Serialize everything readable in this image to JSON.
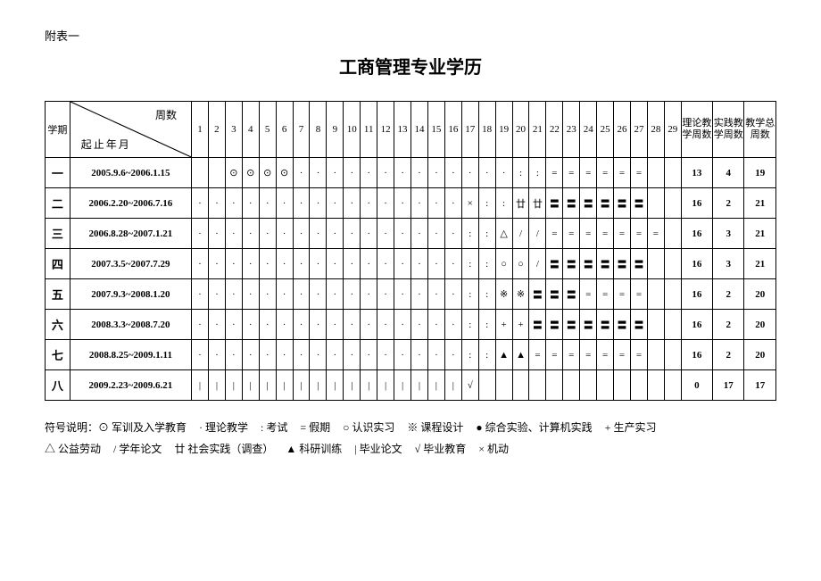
{
  "annex_label": "附表一",
  "title": "工商管理专业学历",
  "header": {
    "semester_label": "学期",
    "diag_top": "周数",
    "diag_bottom": "起止年月",
    "sum1": "理论教学周数",
    "sum2": "实践教学周数",
    "sum3": "教学总周数"
  },
  "week_numbers": [
    "1",
    "2",
    "3",
    "4",
    "5",
    "6",
    "7",
    "8",
    "9",
    "10",
    "11",
    "12",
    "13",
    "14",
    "15",
    "16",
    "17",
    "18",
    "19",
    "20",
    "21",
    "22",
    "23",
    "24",
    "25",
    "26",
    "27",
    "28",
    "29"
  ],
  "rows": [
    {
      "sem": "一",
      "dates": "2005.9.6~2006.1.15",
      "cells": [
        "",
        "",
        "⊙",
        "⊙",
        "⊙",
        "⊙",
        "·",
        "·",
        "·",
        "·",
        "·",
        "·",
        "·",
        "·",
        "·",
        "·",
        "·",
        "·",
        "·",
        ":",
        ":",
        "=",
        "=",
        "=",
        "=",
        "=",
        "=",
        "",
        ""
      ],
      "sum1": "13",
      "sum2": "4",
      "sum3": "19"
    },
    {
      "sem": "二",
      "dates": "2006.2.20~2006.7.16",
      "cells": [
        "·",
        "·",
        "·",
        "·",
        "·",
        "·",
        "·",
        "·",
        "·",
        "·",
        "·",
        "·",
        "·",
        "·",
        "·",
        "·",
        "×",
        ":",
        ":",
        "廿",
        "廿",
        "〓",
        "〓",
        "〓",
        "〓",
        "〓",
        "〓",
        "",
        ""
      ],
      "sum1": "16",
      "sum2": "2",
      "sum3": "21"
    },
    {
      "sem": "三",
      "dates": "2006.8.28~2007.1.21",
      "cells": [
        "·",
        "·",
        "·",
        "·",
        "·",
        "·",
        "·",
        "·",
        "·",
        "·",
        "·",
        "·",
        "·",
        "·",
        "·",
        "·",
        ":",
        ":",
        "△",
        "/",
        "/",
        "=",
        "=",
        "=",
        "=",
        "=",
        "=",
        "=",
        ""
      ],
      "sum1": "16",
      "sum2": "3",
      "sum3": "21"
    },
    {
      "sem": "四",
      "dates": "2007.3.5~2007.7.29",
      "cells": [
        "·",
        "·",
        "·",
        "·",
        "·",
        "·",
        "·",
        "·",
        "·",
        "·",
        "·",
        "·",
        "·",
        "·",
        "·",
        "·",
        ":",
        ":",
        "○",
        "○",
        "/",
        "〓",
        "〓",
        "〓",
        "〓",
        "〓",
        "〓",
        "",
        ""
      ],
      "sum1": "16",
      "sum2": "3",
      "sum3": "21"
    },
    {
      "sem": "五",
      "dates": "2007.9.3~2008.1.20",
      "cells": [
        "·",
        "·",
        "·",
        "·",
        "·",
        "·",
        "·",
        "·",
        "·",
        "·",
        "·",
        "·",
        "·",
        "·",
        "·",
        "·",
        ":",
        ":",
        "※",
        "※",
        "〓",
        "〓",
        "〓",
        "=",
        "=",
        "=",
        "=",
        "",
        ""
      ],
      "sum1": "16",
      "sum2": "2",
      "sum3": "20"
    },
    {
      "sem": "六",
      "dates": "2008.3.3~2008.7.20",
      "cells": [
        "·",
        "·",
        "·",
        "·",
        "·",
        "·",
        "·",
        "·",
        "·",
        "·",
        "·",
        "·",
        "·",
        "·",
        "·",
        "·",
        ":",
        ":",
        "+",
        "+",
        "〓",
        "〓",
        "〓",
        "〓",
        "〓",
        "〓",
        "〓",
        "",
        ""
      ],
      "sum1": "16",
      "sum2": "2",
      "sum3": "20"
    },
    {
      "sem": "七",
      "dates": "2008.8.25~2009.1.11",
      "cells": [
        "·",
        "·",
        "·",
        "·",
        "·",
        "·",
        "·",
        "·",
        "·",
        "·",
        "·",
        "·",
        "·",
        "·",
        "·",
        "·",
        ":",
        ":",
        "▲",
        "▲",
        "=",
        "=",
        "=",
        "=",
        "=",
        "=",
        "=",
        "",
        ""
      ],
      "sum1": "16",
      "sum2": "2",
      "sum3": "20"
    },
    {
      "sem": "八",
      "dates": "2009.2.23~2009.6.21",
      "cells": [
        "|",
        "|",
        "|",
        "|",
        "|",
        "|",
        "|",
        "|",
        "|",
        "|",
        "|",
        "|",
        "|",
        "|",
        "|",
        "|",
        "√",
        "",
        "",
        "",
        "",
        "",
        "",
        "",
        "",
        "",
        "",
        "",
        ""
      ],
      "sum1": "0",
      "sum2": "17",
      "sum3": "17"
    }
  ],
  "legend": {
    "prefix": "符号说明：",
    "line1": [
      {
        "sym": "⊙",
        "label": "军训及入学教育"
      },
      {
        "sym": "·",
        "label": "理论教学"
      },
      {
        "sym": ":",
        "label": "考试"
      },
      {
        "sym": "=",
        "label": "假期"
      },
      {
        "sym": "○",
        "label": "认识实习"
      },
      {
        "sym": "※",
        "label": "课程设计"
      },
      {
        "sym": "●",
        "label": "综合实验、计算机实践"
      },
      {
        "sym": "+",
        "label": "生产实习"
      }
    ],
    "line2": [
      {
        "sym": "△",
        "label": "公益劳动"
      },
      {
        "sym": "/",
        "label": "学年论文"
      },
      {
        "sym": "廿",
        "label": "社会实践（调查）"
      },
      {
        "sym": "▲",
        "label": "科研训练"
      },
      {
        "sym": "|",
        "label": "毕业论文"
      },
      {
        "sym": "√",
        "label": "毕业教育"
      },
      {
        "sym": "×",
        "label": "机动"
      }
    ]
  }
}
